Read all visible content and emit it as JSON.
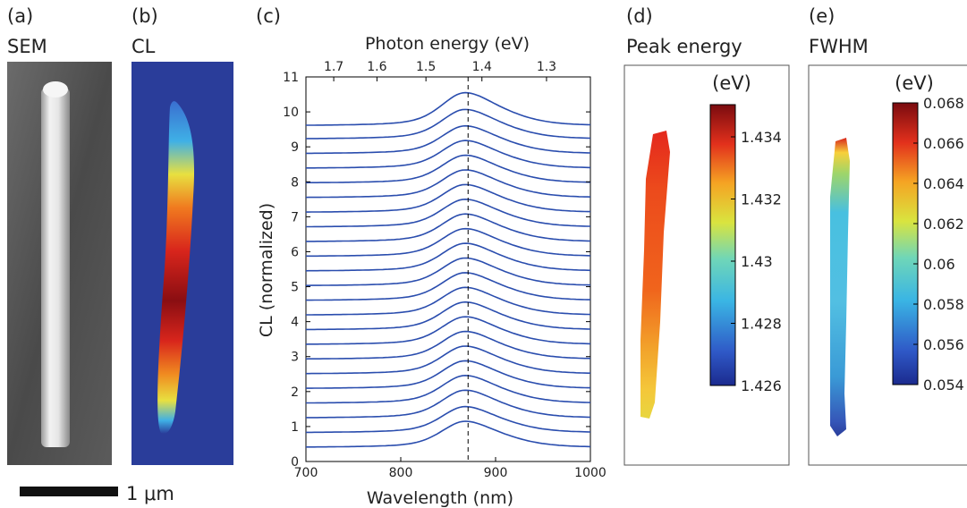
{
  "panels": {
    "a": {
      "label": "(a)",
      "title": "SEM"
    },
    "b": {
      "label": "(b)",
      "title": "CL"
    },
    "c": {
      "label": "(c)"
    },
    "d": {
      "label": "(d)",
      "title": "Peak energy",
      "unit": "(eV)",
      "colorbar_ticks": [
        "1.434",
        "1.432",
        "1.43",
        "1.428",
        "1.426"
      ]
    },
    "e": {
      "label": "(e)",
      "title": "FWHM",
      "unit": "(eV)",
      "colorbar_ticks": [
        "0.068",
        "0.066",
        "0.064",
        "0.062",
        "0.06",
        "0.058",
        "0.056",
        "0.054"
      ]
    }
  },
  "scale_bar": {
    "label": "1 μm"
  },
  "colors": {
    "line": "#2a4dae",
    "cl_background": "#2a3d9a",
    "sem_background": "#5a5a5a"
  },
  "chart_data": {
    "type": "line",
    "xlabel": "Wavelength (nm)",
    "top_xlabel": "Photon energy (eV)",
    "ylabel": "CL (normalized)",
    "xlim": [
      700,
      1000
    ],
    "ylim": [
      0,
      11
    ],
    "x_ticks": [
      "700",
      "800",
      "900",
      "1000"
    ],
    "top_x_ticks": [
      {
        "value": 1.7,
        "label": "1.7"
      },
      {
        "value": 1.6,
        "label": "1.6"
      },
      {
        "value": 1.5,
        "label": "1.5"
      },
      {
        "value": 1.4,
        "label": "1.4"
      },
      {
        "value": 1.3,
        "label": "1.3"
      }
    ],
    "y_ticks": [
      "0",
      "1",
      "2",
      "3",
      "4",
      "5",
      "6",
      "7",
      "8",
      "9",
      "10",
      "11"
    ],
    "dashed_line_x": 871,
    "peak_wavelength": 868,
    "series": [
      {
        "baseline": 0.4,
        "peak_height": 0.75
      },
      {
        "baseline": 0.82,
        "peak_height": 0.75
      },
      {
        "baseline": 1.24,
        "peak_height": 0.8
      },
      {
        "baseline": 1.66,
        "peak_height": 0.8
      },
      {
        "baseline": 2.08,
        "peak_height": 0.8
      },
      {
        "baseline": 2.5,
        "peak_height": 0.8
      },
      {
        "baseline": 2.92,
        "peak_height": 0.8
      },
      {
        "baseline": 3.34,
        "peak_height": 0.8
      },
      {
        "baseline": 3.76,
        "peak_height": 0.8
      },
      {
        "baseline": 4.18,
        "peak_height": 0.8
      },
      {
        "baseline": 4.6,
        "peak_height": 0.8
      },
      {
        "baseline": 5.02,
        "peak_height": 0.8
      },
      {
        "baseline": 5.44,
        "peak_height": 0.8
      },
      {
        "baseline": 5.86,
        "peak_height": 0.8
      },
      {
        "baseline": 6.28,
        "peak_height": 0.8
      },
      {
        "baseline": 6.7,
        "peak_height": 0.8
      },
      {
        "baseline": 7.12,
        "peak_height": 0.8
      },
      {
        "baseline": 7.54,
        "peak_height": 0.8
      },
      {
        "baseline": 7.96,
        "peak_height": 0.8
      },
      {
        "baseline": 8.38,
        "peak_height": 0.8
      },
      {
        "baseline": 8.8,
        "peak_height": 0.8
      },
      {
        "baseline": 9.22,
        "peak_height": 0.85
      },
      {
        "baseline": 9.6,
        "peak_height": 0.95
      }
    ]
  }
}
